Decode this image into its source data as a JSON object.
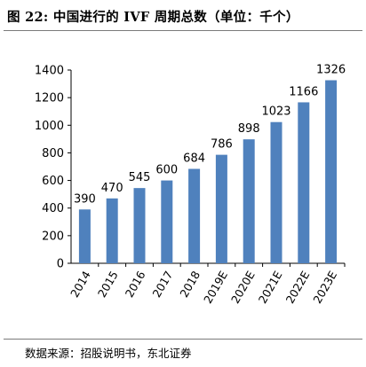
{
  "figure": {
    "title": "图 22: 中国进行的 IVF 周期总数（单位：千个）",
    "source": "数据来源：招股说明书，东北证券"
  },
  "chart_data": {
    "type": "bar",
    "title": "",
    "xlabel": "",
    "ylabel": "",
    "categories": [
      "2014",
      "2015",
      "2016",
      "2017",
      "2018",
      "2019E",
      "2020E",
      "2021E",
      "2022E",
      "2023E"
    ],
    "values": [
      390,
      470,
      545,
      600,
      684,
      786,
      898,
      1023,
      1166,
      1326
    ],
    "ylim": [
      0,
      1400
    ],
    "yticks": [
      0,
      200,
      400,
      600,
      800,
      1000,
      1200,
      1400
    ],
    "grid": false,
    "legend": "none",
    "bar_color": "#4F81BD",
    "data_labels": true
  }
}
